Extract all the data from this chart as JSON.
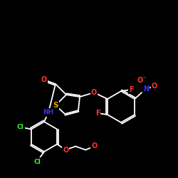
{
  "background_color": "#000000",
  "bond_color": "#ffffff",
  "atom_colors": {
    "S": "#ddaa00",
    "O": "#ff3333",
    "N": "#3333ff",
    "F": "#ff3333",
    "Cl": "#33ff33",
    "C": "#ffffff",
    "H": "#ffffff"
  },
  "lw": 1.3,
  "fontsize": 7.0
}
